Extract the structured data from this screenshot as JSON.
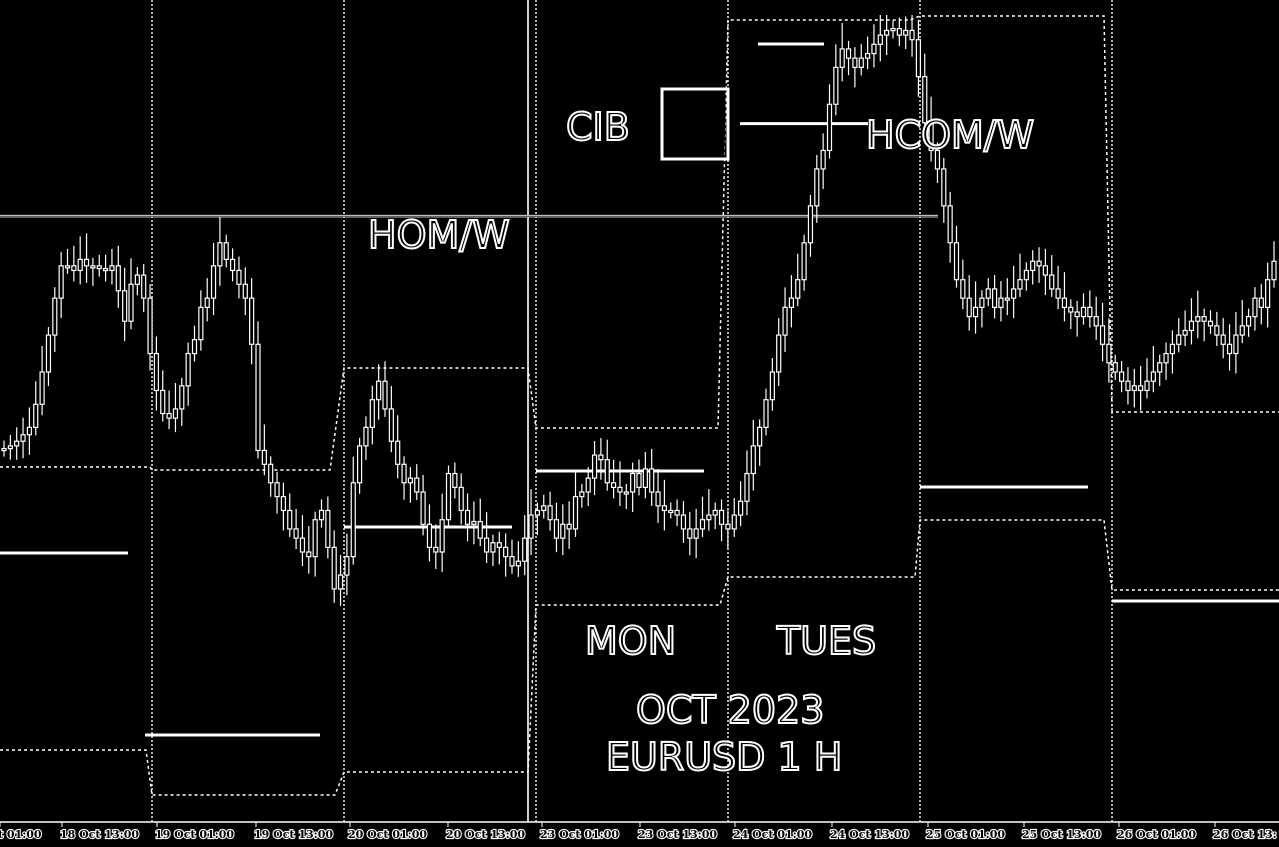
{
  "chart_data": {
    "type": "candlestick",
    "title": "OCT 2023",
    "subtitle": "EURUSD 1 H",
    "colors": {
      "background": "#000000",
      "foreground": "#ffffff"
    },
    "grid": true,
    "x_tick_labels": [
      "t 01:00",
      "18 Oct 13:00",
      "19 Oct 01:00",
      "19 Oct 13:00",
      "20 Oct 01:00",
      "20 Oct 13:00",
      "23 Oct 01:00",
      "23 Oct 13:00",
      "24 Oct 01:00",
      "24 Oct 13:00",
      "25 Oct 01:00",
      "25 Oct 13:00",
      "26 Oct 01:00",
      "26 Oct 13:"
    ],
    "annotations": {
      "hom_w": "HOM/W",
      "cib": "CIB",
      "hcom_w": "HCOM/W",
      "mon": "MON",
      "tues": "TUES"
    },
    "series": [
      {
        "values": [
          0.537,
          0.54,
          0.545,
          0.552,
          0.56,
          0.585,
          0.62,
          0.66,
          0.7,
          0.735,
          0.735,
          0.73,
          0.742,
          0.735,
          0.735,
          0.732,
          0.73,
          0.735,
          0.708,
          0.675,
          0.715,
          0.725,
          0.7,
          0.64,
          0.6,
          0.575,
          0.57,
          0.58,
          0.605,
          0.64,
          0.655,
          0.69,
          0.7,
          0.735,
          0.76,
          0.742,
          0.73,
          0.715,
          0.7,
          0.65,
          0.535,
          0.52,
          0.5,
          0.485,
          0.47,
          0.45,
          0.44,
          0.425,
          0.42,
          0.46,
          0.47,
          0.43,
          0.385,
          0.4,
          0.42,
          0.5,
          0.54,
          0.56,
          0.59,
          0.61,
          0.58,
          0.545,
          0.52,
          0.5,
          0.505,
          0.49,
          0.455,
          0.43,
          0.425,
          0.46,
          0.51,
          0.495,
          0.47,
          0.455,
          0.458,
          0.44,
          0.425,
          0.435,
          0.43,
          0.42,
          0.41,
          0.415,
          0.44,
          0.465,
          0.47,
          0.475,
          0.46,
          0.44,
          0.455,
          0.45,
          0.485,
          0.49,
          0.505,
          0.53,
          0.525,
          0.5,
          0.495,
          0.49,
          0.49,
          0.51,
          0.495,
          0.515,
          0.49,
          0.475,
          0.47,
          0.47,
          0.465,
          0.45,
          0.44,
          0.45,
          0.46,
          0.465,
          0.47,
          0.455,
          0.45,
          0.465,
          0.48,
          0.51,
          0.54,
          0.56,
          0.59,
          0.62,
          0.66,
          0.69,
          0.7,
          0.72,
          0.76,
          0.8,
          0.84,
          0.86,
          0.91,
          0.95,
          0.97,
          0.96,
          0.95,
          0.96,
          0.965,
          0.975,
          0.985,
          0.99,
          0.992,
          0.985,
          0.99,
          0.98,
          0.94,
          0.89,
          0.86,
          0.84,
          0.8,
          0.76,
          0.72,
          0.7,
          0.68,
          0.69,
          0.7,
          0.71,
          0.69,
          0.7,
          0.7,
          0.71,
          0.72,
          0.73,
          0.74,
          0.735,
          0.725,
          0.71,
          0.7,
          0.69,
          0.685,
          0.68,
          0.69,
          0.68,
          0.67,
          0.65,
          0.63,
          0.62,
          0.61,
          0.6,
          0.605,
          0.6,
          0.61,
          0.62,
          0.63,
          0.64,
          0.65,
          0.66,
          0.665,
          0.675,
          0.68,
          0.675,
          0.67,
          0.66,
          0.65,
          0.64,
          0.66,
          0.67,
          0.68,
          0.7,
          0.69,
          0.72,
          0.74
        ]
      }
    ],
    "level_lines": [
      {
        "name": "hom_w",
        "style": "solid",
        "y": 0.737
      },
      {
        "name": "hcom_w",
        "style": "solid",
        "y": 0.88
      }
    ]
  }
}
